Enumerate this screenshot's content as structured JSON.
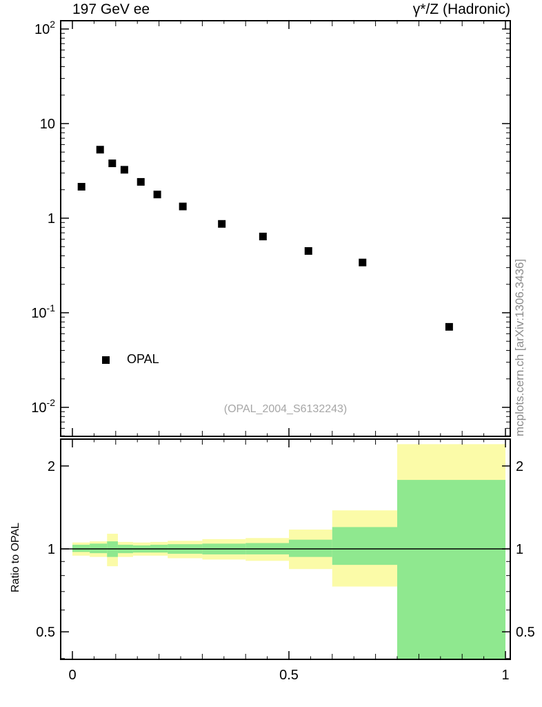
{
  "attribution": "mcplots.cern.ch [arXiv:1306.3436]",
  "colors": {
    "point": "#000000",
    "frame": "#000000",
    "band_outer": "#fbfba8",
    "band_inner": "#8fe88f",
    "watermark": "#a6a6a6",
    "attribution": "#8c8c8c"
  },
  "chart_data": [
    {
      "type": "scatter",
      "panel": "main",
      "title_left": "197 GeV ee",
      "title_right": "γ*/Z (Hadronic)",
      "watermark": "(OPAL_2004_S6132243)",
      "yscale": "log",
      "ylim": [
        0.0049,
        122
      ],
      "xlim": [
        -0.027,
        1.011
      ],
      "grid": false,
      "y_ticks": [
        {
          "v": 100,
          "label": "10",
          "exp": "2"
        },
        {
          "v": 10,
          "label": "10"
        },
        {
          "v": 1,
          "label": "1"
        },
        {
          "v": 0.1,
          "label": "10",
          "exp": "-1"
        },
        {
          "v": 0.01,
          "label": "10",
          "exp": "-2"
        }
      ],
      "legend": {
        "label": "OPAL",
        "marker": "filled-square",
        "position": "lower-left"
      },
      "series": [
        {
          "name": "OPAL",
          "marker": "filled-square",
          "color": "#000000",
          "points": [
            [
              0.021,
              2.15
            ],
            [
              0.064,
              5.3
            ],
            [
              0.092,
              3.8
            ],
            [
              0.12,
              3.25
            ],
            [
              0.158,
              2.42
            ],
            [
              0.196,
              1.78
            ],
            [
              0.255,
              1.33
            ],
            [
              0.345,
              0.87
            ],
            [
              0.44,
              0.64
            ],
            [
              0.545,
              0.45
            ],
            [
              0.67,
              0.34
            ],
            [
              0.87,
              0.071
            ]
          ]
        }
      ]
    },
    {
      "type": "band",
      "panel": "ratio",
      "ylabel": "Ratio to OPAL",
      "yscale": "log",
      "ylim": [
        0.397,
        2.504
      ],
      "reference_line": 1,
      "y_ticks": [
        {
          "v": 0.5,
          "label": "0.5"
        },
        {
          "v": 1,
          "label": "1"
        },
        {
          "v": 2,
          "label": "2"
        }
      ],
      "y_minor_ticks": [
        0.4,
        0.6,
        0.7,
        0.8,
        0.9
      ],
      "x_ticks": [
        0,
        0.5,
        1
      ],
      "x_tick_labels": [
        "0",
        "0.5",
        "1"
      ],
      "bins": [
        {
          "x0": 0.0,
          "x1": 0.04,
          "outer": [
            0.945,
            1.055
          ],
          "inner": [
            0.975,
            1.035
          ]
        },
        {
          "x0": 0.04,
          "x1": 0.08,
          "outer": [
            0.935,
            1.065
          ],
          "inner": [
            0.965,
            1.045
          ]
        },
        {
          "x0": 0.08,
          "x1": 0.105,
          "outer": [
            0.865,
            1.135
          ],
          "inner": [
            0.935,
            1.065
          ]
        },
        {
          "x0": 0.105,
          "x1": 0.14,
          "outer": [
            0.935,
            1.06
          ],
          "inner": [
            0.965,
            1.035
          ]
        },
        {
          "x0": 0.14,
          "x1": 0.18,
          "outer": [
            0.945,
            1.055
          ],
          "inner": [
            0.97,
            1.03
          ]
        },
        {
          "x0": 0.18,
          "x1": 0.22,
          "outer": [
            0.945,
            1.06
          ],
          "inner": [
            0.97,
            1.035
          ]
        },
        {
          "x0": 0.22,
          "x1": 0.3,
          "outer": [
            0.925,
            1.07
          ],
          "inner": [
            0.96,
            1.04
          ]
        },
        {
          "x0": 0.3,
          "x1": 0.4,
          "outer": [
            0.915,
            1.085
          ],
          "inner": [
            0.955,
            1.045
          ]
        },
        {
          "x0": 0.4,
          "x1": 0.5,
          "outer": [
            0.905,
            1.095
          ],
          "inner": [
            0.955,
            1.05
          ]
        },
        {
          "x0": 0.5,
          "x1": 0.6,
          "outer": [
            0.845,
            1.175
          ],
          "inner": [
            0.935,
            1.08
          ]
        },
        {
          "x0": 0.6,
          "x1": 0.75,
          "outer": [
            0.73,
            1.38
          ],
          "inner": [
            0.875,
            1.2
          ]
        },
        {
          "x0": 0.75,
          "x1": 1.0,
          "outer": [
            0.3,
            2.4
          ],
          "inner": [
            0.3,
            1.78
          ]
        }
      ]
    }
  ]
}
